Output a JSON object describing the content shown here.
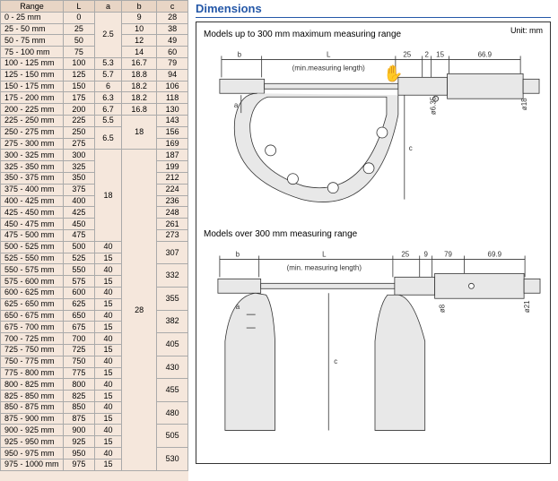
{
  "table": {
    "headers": [
      "Range",
      "L",
      "a",
      "b",
      "c"
    ],
    "rows": [
      {
        "range": "0 - 25 mm",
        "L": "0",
        "a": "",
        "b": "9",
        "c": "28"
      },
      {
        "range": "25 - 50 mm",
        "L": "25",
        "a": "",
        "b": "10",
        "c": "38"
      },
      {
        "range": "50 - 75 mm",
        "L": "50",
        "a": "",
        "b": "12",
        "c": "49"
      },
      {
        "range": "75 - 100 mm",
        "L": "75",
        "a": "",
        "b": "14",
        "c": "60"
      },
      {
        "range": "100 - 125 mm",
        "L": "100",
        "a": "5.3",
        "b": "16.7",
        "c": "79"
      },
      {
        "range": "125 - 150 mm",
        "L": "125",
        "a": "5.7",
        "b": "18.8",
        "c": "94"
      },
      {
        "range": "150 - 175 mm",
        "L": "150",
        "a": "6",
        "b": "18.2",
        "c": "106"
      },
      {
        "range": "175 - 200 mm",
        "L": "175",
        "a": "6.3",
        "b": "18.2",
        "c": "118"
      },
      {
        "range": "200 - 225 mm",
        "L": "200",
        "a": "6.7",
        "b": "16.8",
        "c": "130"
      },
      {
        "range": "225 - 250 mm",
        "L": "225",
        "a": "5.5",
        "b": "",
        "c": "143"
      },
      {
        "range": "250 - 275 mm",
        "L": "250",
        "a": "",
        "b": "",
        "c": "156"
      },
      {
        "range": "275 - 300 mm",
        "L": "275",
        "a": "",
        "b": "",
        "c": "169"
      },
      {
        "range": "300 - 325 mm",
        "L": "300",
        "a": "",
        "b": "",
        "c": "187"
      },
      {
        "range": "325 - 350 mm",
        "L": "325",
        "a": "",
        "b": "",
        "c": "199"
      },
      {
        "range": "350 - 375 mm",
        "L": "350",
        "a": "",
        "b": "",
        "c": "212"
      },
      {
        "range": "375 - 400 mm",
        "L": "375",
        "a": "",
        "b": "",
        "c": "224"
      },
      {
        "range": "400 - 425 mm",
        "L": "400",
        "a": "",
        "b": "",
        "c": "236"
      },
      {
        "range": "425 - 450 mm",
        "L": "425",
        "a": "",
        "b": "",
        "c": "248"
      },
      {
        "range": "450 - 475 mm",
        "L": "450",
        "a": "",
        "b": "",
        "c": "261"
      },
      {
        "range": "475 - 500 mm",
        "L": "475",
        "a": "",
        "b": "",
        "c": "273"
      },
      {
        "range": "500 - 525 mm",
        "L": "500",
        "a": "40",
        "b": "",
        "c": ""
      },
      {
        "range": "525 - 550 mm",
        "L": "525",
        "a": "15",
        "b": "",
        "c": ""
      },
      {
        "range": "550 - 575 mm",
        "L": "550",
        "a": "40",
        "b": "",
        "c": ""
      },
      {
        "range": "575 - 600 mm",
        "L": "575",
        "a": "15",
        "b": "",
        "c": ""
      },
      {
        "range": "600 - 625 mm",
        "L": "600",
        "a": "40",
        "b": "",
        "c": ""
      },
      {
        "range": "625 - 650 mm",
        "L": "625",
        "a": "15",
        "b": "",
        "c": ""
      },
      {
        "range": "650 - 675 mm",
        "L": "650",
        "a": "40",
        "b": "",
        "c": ""
      },
      {
        "range": "675 - 700 mm",
        "L": "675",
        "a": "15",
        "b": "",
        "c": ""
      },
      {
        "range": "700 - 725 mm",
        "L": "700",
        "a": "40",
        "b": "",
        "c": ""
      },
      {
        "range": "725 - 750 mm",
        "L": "725",
        "a": "15",
        "b": "",
        "c": ""
      },
      {
        "range": "750 - 775 mm",
        "L": "750",
        "a": "40",
        "b": "",
        "c": ""
      },
      {
        "range": "775 - 800 mm",
        "L": "775",
        "a": "15",
        "b": "",
        "c": ""
      },
      {
        "range": "800 - 825 mm",
        "L": "800",
        "a": "40",
        "b": "",
        "c": ""
      },
      {
        "range": "825 - 850 mm",
        "L": "825",
        "a": "15",
        "b": "",
        "c": ""
      },
      {
        "range": "850 - 875 mm",
        "L": "850",
        "a": "40",
        "b": "",
        "c": ""
      },
      {
        "range": "875 - 900 mm",
        "L": "875",
        "a": "15",
        "b": "",
        "c": ""
      },
      {
        "range": "900 - 925 mm",
        "L": "900",
        "a": "40",
        "b": "",
        "c": ""
      },
      {
        "range": "925 - 950 mm",
        "L": "925",
        "a": "15",
        "b": "",
        "c": ""
      },
      {
        "range": "950 - 975 mm",
        "L": "950",
        "a": "40",
        "b": "",
        "c": ""
      },
      {
        "range": "975 - 1000 mm",
        "L": "975",
        "a": "15",
        "b": "",
        "c": ""
      }
    ],
    "a_spans": [
      {
        "start": 0,
        "span": 4,
        "val": "2.5"
      },
      {
        "start": 10,
        "span": 2,
        "val": "6.5"
      },
      {
        "start": 12,
        "span": 8,
        "val": "18"
      }
    ],
    "b_spans": [
      {
        "start": 9,
        "span": 3,
        "val": "18"
      },
      {
        "start": 12,
        "span": 28,
        "val": "28"
      }
    ],
    "c_spans": [
      {
        "start": 20,
        "span": 2,
        "val": "307"
      },
      {
        "start": 22,
        "span": 2,
        "val": "332"
      },
      {
        "start": 24,
        "span": 2,
        "val": "355"
      },
      {
        "start": 26,
        "span": 2,
        "val": "382"
      },
      {
        "start": 28,
        "span": 2,
        "val": "405"
      },
      {
        "start": 30,
        "span": 2,
        "val": "430"
      },
      {
        "start": 32,
        "span": 2,
        "val": "455"
      },
      {
        "start": 34,
        "span": 2,
        "val": "480"
      },
      {
        "start": 36,
        "span": 2,
        "val": "505"
      },
      {
        "start": 38,
        "span": 2,
        "val": "530"
      }
    ]
  },
  "dim": {
    "title": "Dimensions",
    "unit": "Unit: mm",
    "sub1": "Models up to 300 mm maximum measuring range",
    "sub2": "Models over 300 mm measuring range",
    "labels1": {
      "b": "b",
      "L": "L",
      "min": "(min.measuring length)",
      "d25": "25",
      "d2": "2",
      "d15": "15",
      "d66": "66.9",
      "a": "a",
      "c": "c",
      "phi8": "ø8",
      "phi18": "ø18",
      "phi63": "ø6.35"
    },
    "labels2": {
      "b": "b",
      "L": "L",
      "min": "(min. measuring length)",
      "d25": "25",
      "d9": "9",
      "d79": "79",
      "d69": "69.9",
      "a": "a",
      "c": "c",
      "phi8": "ø8",
      "phi21": "ø21"
    }
  },
  "colors": {
    "table_bg": "#f5e7dc",
    "header_bg": "#e8d5c5",
    "border": "#aaaaaa",
    "title": "#2558a8",
    "line": "#333333",
    "micrometer_fill": "#e8e8e8"
  }
}
